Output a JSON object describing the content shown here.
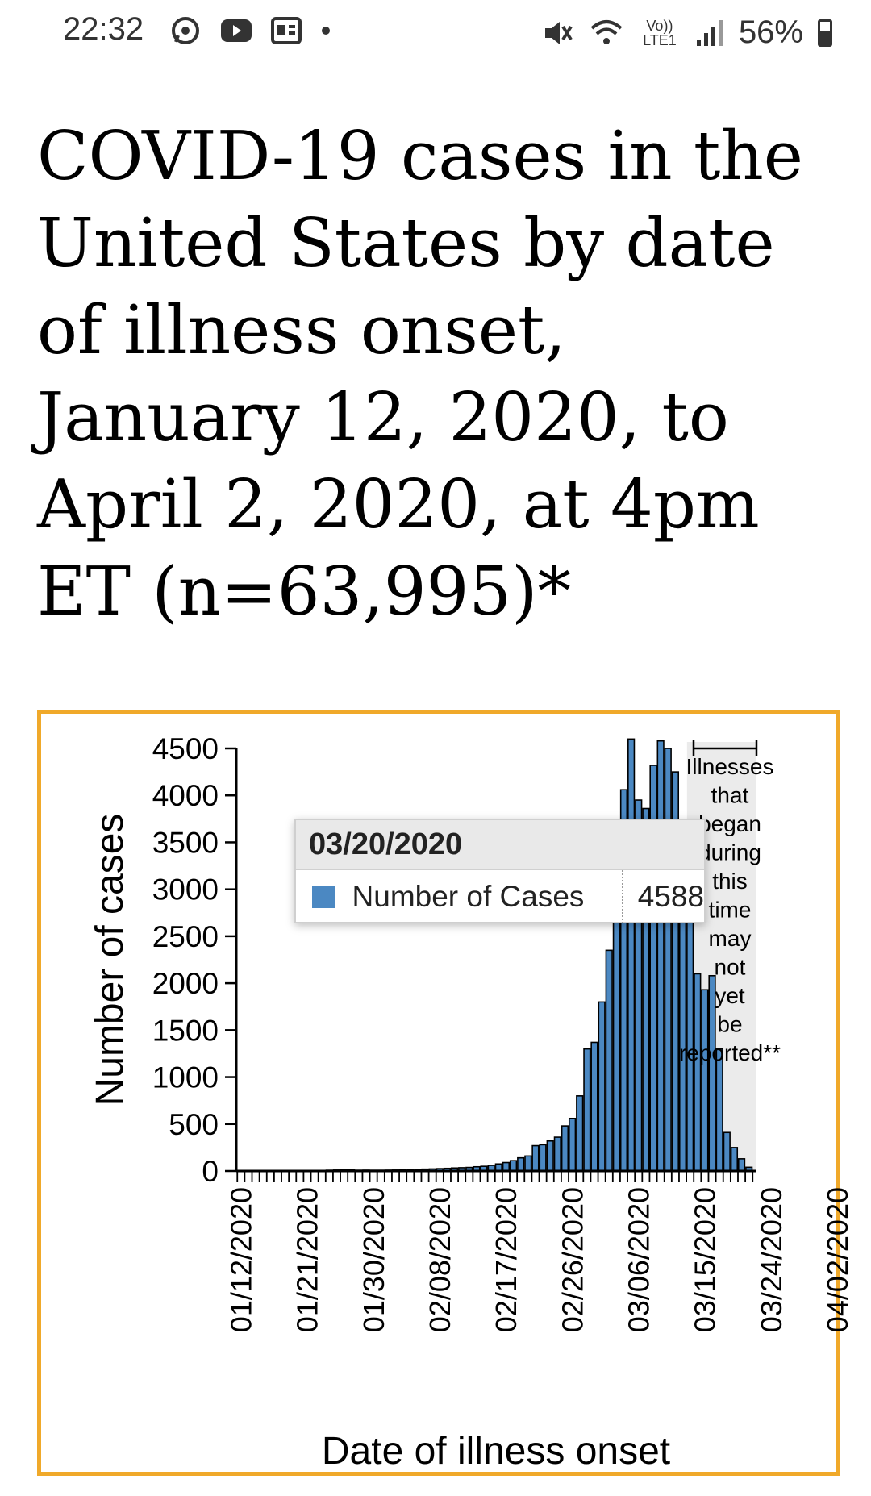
{
  "status_bar": {
    "time": "22:32",
    "battery": "56%",
    "network_label": "Vo)) LTE1",
    "icons_left": [
      "whatsapp-icon",
      "youtube-icon",
      "news-icon",
      "dot-icon"
    ],
    "icons_right": [
      "mute-icon",
      "wifi-icon",
      "signal-icon",
      "battery-icon"
    ]
  },
  "title": "COVID-19 cases in the United States by date of illness onset, January 12, 2020, to April 2, 2020, at 4pm ET (n=63,995)*",
  "chart_data": {
    "type": "bar",
    "ylabel": "Number of cases",
    "xlabel": "Date of illness onset",
    "ylim": [
      0,
      4500
    ],
    "yticks": [
      "4500",
      "4000",
      "3500",
      "3000",
      "2500",
      "2000",
      "1500",
      "1000",
      "500",
      "0"
    ],
    "xtick_labels": [
      "01/12/2020",
      "01/21/2020",
      "01/30/2020",
      "02/08/2020",
      "02/17/2020",
      "02/26/2020",
      "03/06/2020",
      "03/15/2020",
      "03/24/2020",
      "04/02/2020"
    ],
    "annotation": [
      "Illnesses",
      "that",
      "began",
      "during",
      "this",
      "time",
      "may",
      "not",
      "yet",
      "be",
      "reported**"
    ],
    "bar_color": "#4b88c2",
    "shade_color": "#ebebeb",
    "values": [
      2,
      1,
      2,
      2,
      1,
      3,
      3,
      5,
      4,
      4,
      6,
      6,
      8,
      10,
      12,
      14,
      8,
      9,
      8,
      8,
      9,
      10,
      12,
      14,
      16,
      20,
      22,
      25,
      28,
      32,
      35,
      38,
      45,
      50,
      60,
      75,
      90,
      110,
      140,
      160,
      270,
      280,
      320,
      360,
      480,
      560,
      800,
      1300,
      1370,
      1800,
      2350,
      2980,
      4060,
      4600,
      3950,
      3860,
      4320,
      4580,
      4500,
      4250,
      3550,
      2880,
      2100,
      1930,
      2080,
      1300,
      410,
      250,
      130,
      40
    ]
  },
  "tooltip": {
    "date": "03/20/2020",
    "label": "Number of Cases",
    "value": "4588",
    "swatch_color": "#4b88c2"
  }
}
